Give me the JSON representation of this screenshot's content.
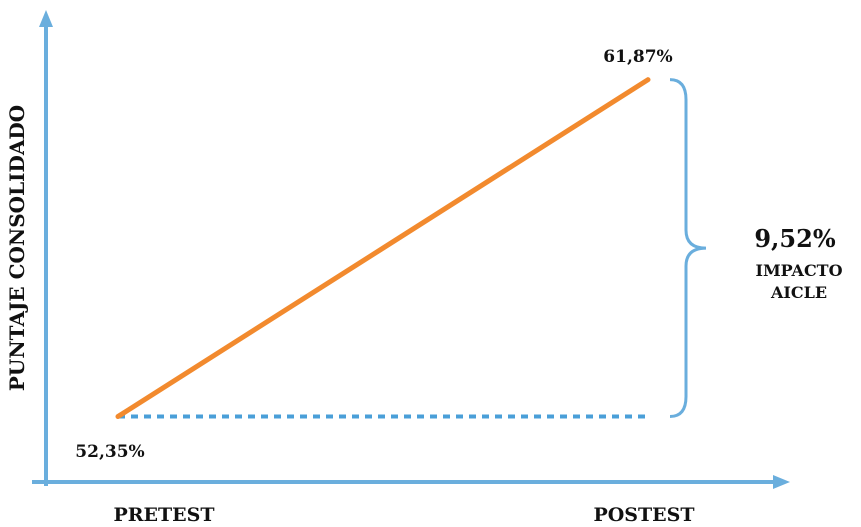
{
  "chart_data": {
    "type": "line",
    "title": "",
    "ylabel": "PUNTAJE CONSOLIDADO",
    "xlabel": "",
    "categories": [
      "PRETEST",
      "POSTEST"
    ],
    "series": [
      {
        "values": [
          52.35,
          61.87
        ]
      }
    ],
    "data_labels": [
      "52,35%",
      "61,87%"
    ],
    "annotation": {
      "value": "9,52%",
      "line1": "IMPACTO",
      "line2": "AICLE"
    },
    "baseline_value": 52.35,
    "ylim": [
      50.5,
      63.5
    ],
    "colors": {
      "axis": "#6aaedd",
      "series": "#f28a2e",
      "baseline": "#4a9fd8",
      "brace": "#6aaedd"
    }
  }
}
